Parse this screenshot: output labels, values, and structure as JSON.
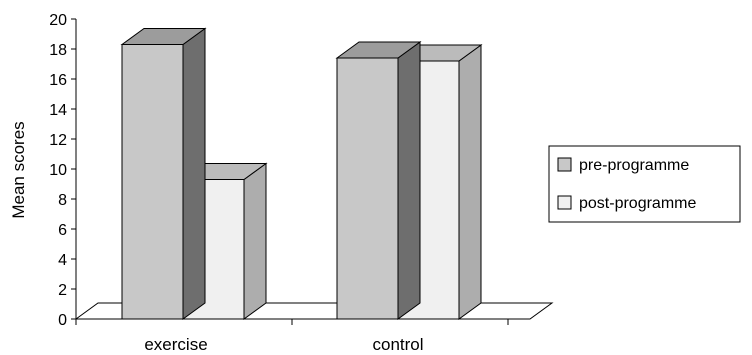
{
  "chart_data": {
    "type": "bar",
    "style": "3d-clustered-column",
    "categories": [
      "exercise",
      "control"
    ],
    "series": [
      {
        "name": "pre-programme",
        "values": [
          18.3,
          17.4
        ],
        "color": "#c8c8c8"
      },
      {
        "name": "post-programme",
        "values": [
          9.3,
          17.2
        ],
        "color": "#f0f0f0"
      }
    ],
    "title": "",
    "xlabel": "",
    "ylabel": "Mean scores",
    "ylim": [
      0,
      20
    ],
    "yticks": [
      "0",
      "2",
      "4",
      "6",
      "8",
      "10",
      "12",
      "14",
      "16",
      "18",
      "20"
    ],
    "grid": false,
    "legend_position": "right"
  }
}
